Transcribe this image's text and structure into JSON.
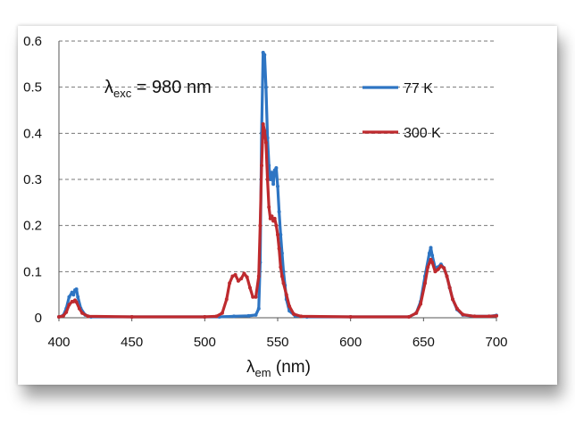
{
  "chart_data": {
    "type": "line",
    "xlim": [
      400,
      700
    ],
    "ylim": [
      0,
      0.6
    ],
    "x_ticks": [
      "400",
      "450",
      "500",
      "550",
      "600",
      "650",
      "700"
    ],
    "y_ticks": [
      "0",
      "0.1",
      "0.2",
      "0.3",
      "0.4",
      "0.5",
      "0.6"
    ],
    "xlabel": {
      "symbol": "λ",
      "sub": "em",
      "rest": " (nm)"
    },
    "annotation": {
      "symbol": "λ",
      "sub": "exc",
      "rest": " = 980 nm"
    },
    "grid": "horizontal-dashed",
    "legend_position": "top-right",
    "series": [
      {
        "name": "77 K",
        "color": "#2e75c3",
        "points": [
          [
            400,
            0.002
          ],
          [
            403,
            0.005
          ],
          [
            405,
            0.02
          ],
          [
            407,
            0.045
          ],
          [
            409,
            0.055
          ],
          [
            410,
            0.05
          ],
          [
            411,
            0.06
          ],
          [
            412,
            0.062
          ],
          [
            413,
            0.045
          ],
          [
            415,
            0.02
          ],
          [
            418,
            0.006
          ],
          [
            422,
            0.002
          ],
          [
            450,
            0.002
          ],
          [
            500,
            0.002
          ],
          [
            510,
            0.002
          ],
          [
            520,
            0.003
          ],
          [
            530,
            0.004
          ],
          [
            535,
            0.006
          ],
          [
            537,
            0.02
          ],
          [
            538,
            0.12
          ],
          [
            539,
            0.4
          ],
          [
            540,
            0.575
          ],
          [
            541,
            0.57
          ],
          [
            542,
            0.5
          ],
          [
            543,
            0.39
          ],
          [
            544,
            0.33
          ],
          [
            545,
            0.3
          ],
          [
            546,
            0.315
          ],
          [
            547,
            0.29
          ],
          [
            548,
            0.32
          ],
          [
            549,
            0.325
          ],
          [
            550,
            0.285
          ],
          [
            551,
            0.23
          ],
          [
            552,
            0.18
          ],
          [
            553,
            0.14
          ],
          [
            554,
            0.1
          ],
          [
            555,
            0.07
          ],
          [
            556,
            0.04
          ],
          [
            558,
            0.015
          ],
          [
            562,
            0.004
          ],
          [
            570,
            0.002
          ],
          [
            600,
            0.002
          ],
          [
            640,
            0.002
          ],
          [
            645,
            0.01
          ],
          [
            648,
            0.035
          ],
          [
            651,
            0.09
          ],
          [
            654,
            0.14
          ],
          [
            655,
            0.152
          ],
          [
            656,
            0.135
          ],
          [
            658,
            0.108
          ],
          [
            660,
            0.11
          ],
          [
            662,
            0.116
          ],
          [
            664,
            0.108
          ],
          [
            666,
            0.09
          ],
          [
            668,
            0.065
          ],
          [
            670,
            0.04
          ],
          [
            673,
            0.018
          ],
          [
            677,
            0.006
          ],
          [
            685,
            0.003
          ],
          [
            695,
            0.003
          ],
          [
            700,
            0.005
          ]
        ]
      },
      {
        "name": "300 K",
        "color": "#be2a2e",
        "points": [
          [
            400,
            0.002
          ],
          [
            403,
            0.004
          ],
          [
            405,
            0.012
          ],
          [
            407,
            0.028
          ],
          [
            409,
            0.035
          ],
          [
            410,
            0.035
          ],
          [
            411,
            0.038
          ],
          [
            412,
            0.034
          ],
          [
            414,
            0.02
          ],
          [
            416,
            0.01
          ],
          [
            420,
            0.003
          ],
          [
            450,
            0.002
          ],
          [
            500,
            0.002
          ],
          [
            508,
            0.003
          ],
          [
            512,
            0.01
          ],
          [
            515,
            0.04
          ],
          [
            517,
            0.075
          ],
          [
            519,
            0.09
          ],
          [
            521,
            0.093
          ],
          [
            523,
            0.08
          ],
          [
            525,
            0.085
          ],
          [
            527,
            0.096
          ],
          [
            529,
            0.088
          ],
          [
            531,
            0.065
          ],
          [
            533,
            0.045
          ],
          [
            535,
            0.045
          ],
          [
            537,
            0.09
          ],
          [
            538,
            0.2
          ],
          [
            539,
            0.33
          ],
          [
            540,
            0.42
          ],
          [
            541,
            0.405
          ],
          [
            542,
            0.38
          ],
          [
            543,
            0.3
          ],
          [
            544,
            0.24
          ],
          [
            545,
            0.215
          ],
          [
            546,
            0.22
          ],
          [
            547,
            0.21
          ],
          [
            548,
            0.215
          ],
          [
            549,
            0.2
          ],
          [
            550,
            0.18
          ],
          [
            551,
            0.15
          ],
          [
            552,
            0.11
          ],
          [
            553,
            0.09
          ],
          [
            554,
            0.075
          ],
          [
            556,
            0.05
          ],
          [
            558,
            0.025
          ],
          [
            561,
            0.008
          ],
          [
            566,
            0.003
          ],
          [
            600,
            0.002
          ],
          [
            640,
            0.002
          ],
          [
            645,
            0.01
          ],
          [
            648,
            0.03
          ],
          [
            651,
            0.075
          ],
          [
            653,
            0.11
          ],
          [
            655,
            0.126
          ],
          [
            656,
            0.12
          ],
          [
            658,
            0.1
          ],
          [
            660,
            0.105
          ],
          [
            662,
            0.112
          ],
          [
            664,
            0.108
          ],
          [
            666,
            0.09
          ],
          [
            668,
            0.065
          ],
          [
            670,
            0.04
          ],
          [
            673,
            0.02
          ],
          [
            677,
            0.007
          ],
          [
            685,
            0.003
          ],
          [
            695,
            0.003
          ],
          [
            700,
            0.004
          ]
        ]
      }
    ]
  }
}
